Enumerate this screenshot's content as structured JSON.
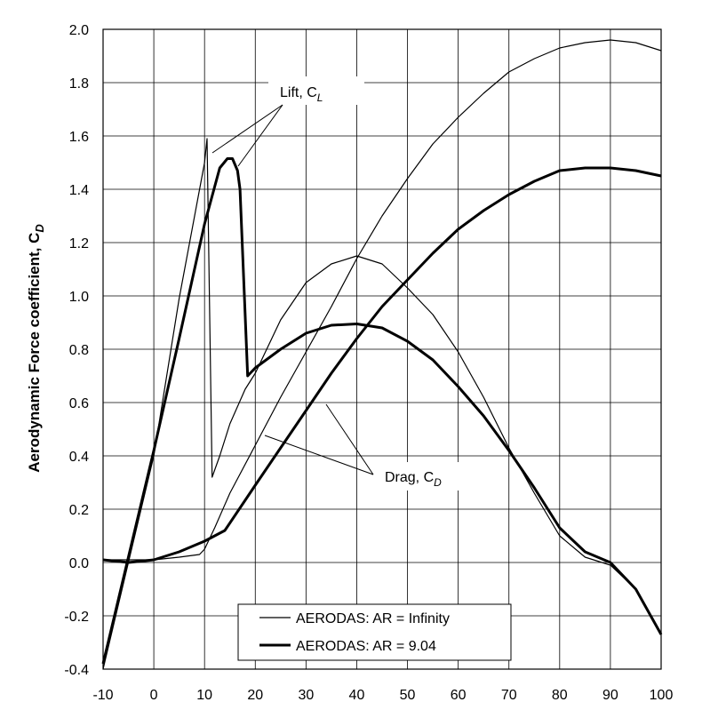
{
  "chart_data": {
    "type": "line",
    "title": "",
    "xlabel": "",
    "ylabel": "Aerodynamic Force coefficient, C",
    "ylabel_sub": "D",
    "xlim": [
      -10,
      100
    ],
    "ylim": [
      -0.4,
      2.0
    ],
    "xticks": [
      -10,
      0,
      10,
      20,
      30,
      40,
      50,
      60,
      70,
      80,
      90,
      100
    ],
    "yticks": [
      -0.4,
      -0.2,
      0.0,
      0.2,
      0.4,
      0.6,
      0.8,
      1.0,
      1.2,
      1.4,
      1.6,
      1.8,
      2.0
    ],
    "ytick_labels": [
      "-0.4",
      "-0.2",
      "0.0",
      "0.2",
      "0.4",
      "0.6",
      "0.8",
      "1.0",
      "1.2",
      "1.4",
      "1.6",
      "1.8",
      "2.0"
    ],
    "xtick_labels": [
      "-10",
      "0",
      "10",
      "20",
      "30",
      "40",
      "50",
      "60",
      "70",
      "80",
      "90",
      "100"
    ],
    "grid": true,
    "legend_position": "bottom-center",
    "annotations": [
      {
        "text": "Lift, C",
        "sub": "L"
      },
      {
        "text": "Drag, C",
        "sub": "D"
      }
    ],
    "series": [
      {
        "name": "AERODAS: AR = Infinity",
        "role": "lift",
        "width": "thin",
        "x": [
          -10,
          -5,
          0,
          5,
          10,
          10.5,
          11.5,
          13,
          15,
          18,
          20,
          25,
          30,
          35,
          40,
          45,
          50,
          55,
          60,
          65,
          70,
          75,
          80,
          85,
          90,
          95,
          100
        ],
        "y": [
          -0.4,
          0.0,
          0.4,
          0.99,
          1.5,
          1.59,
          0.32,
          0.4,
          0.52,
          0.65,
          0.71,
          0.91,
          1.05,
          1.12,
          1.15,
          1.12,
          1.03,
          0.93,
          0.79,
          0.62,
          0.43,
          0.26,
          0.1,
          0.02,
          -0.01,
          -0.1,
          -0.27
        ]
      },
      {
        "name": "AERODAS: AR = Infinity",
        "role": "drag",
        "width": "thin",
        "x": [
          -10,
          0,
          5,
          9,
          10,
          12,
          15,
          20,
          25,
          30,
          35,
          40,
          45,
          50,
          55,
          60,
          65,
          70,
          75,
          80,
          85,
          90,
          95,
          100
        ],
        "y": [
          0.01,
          0.01,
          0.02,
          0.03,
          0.05,
          0.13,
          0.26,
          0.44,
          0.62,
          0.79,
          0.96,
          1.14,
          1.3,
          1.44,
          1.57,
          1.67,
          1.76,
          1.84,
          1.89,
          1.93,
          1.95,
          1.96,
          1.95,
          1.92
        ]
      },
      {
        "name": "AERODAS: AR = 9.04",
        "role": "lift",
        "width": "thick",
        "x": [
          -10,
          -5,
          0,
          5,
          10,
          13,
          14.5,
          15.5,
          16.5,
          17,
          18.5,
          20,
          25,
          30,
          35,
          40,
          45,
          50,
          55,
          60,
          65,
          70,
          75,
          80,
          85,
          90,
          95,
          100
        ],
        "y": [
          -0.38,
          0.02,
          0.42,
          0.84,
          1.27,
          1.48,
          1.515,
          1.515,
          1.47,
          1.4,
          0.7,
          0.73,
          0.8,
          0.86,
          0.89,
          0.895,
          0.88,
          0.83,
          0.76,
          0.66,
          0.55,
          0.42,
          0.28,
          0.13,
          0.04,
          0.0,
          -0.1,
          -0.27
        ]
      },
      {
        "name": "AERODAS: AR = 9.04",
        "role": "drag",
        "width": "thick",
        "x": [
          -10,
          -5,
          0,
          5,
          10,
          14,
          20,
          25,
          30,
          35,
          40,
          45,
          50,
          55,
          60,
          65,
          70,
          75,
          80,
          85,
          90,
          95,
          100
        ],
        "y": [
          0.01,
          0.0,
          0.01,
          0.04,
          0.08,
          0.12,
          0.29,
          0.43,
          0.57,
          0.71,
          0.84,
          0.96,
          1.06,
          1.16,
          1.25,
          1.32,
          1.38,
          1.43,
          1.47,
          1.48,
          1.48,
          1.47,
          1.45
        ]
      }
    ],
    "legend": [
      {
        "label": "AERODAS: AR = Infinity",
        "width": "thin"
      },
      {
        "label": "AERODAS: AR = 9.04",
        "width": "thick"
      }
    ]
  }
}
